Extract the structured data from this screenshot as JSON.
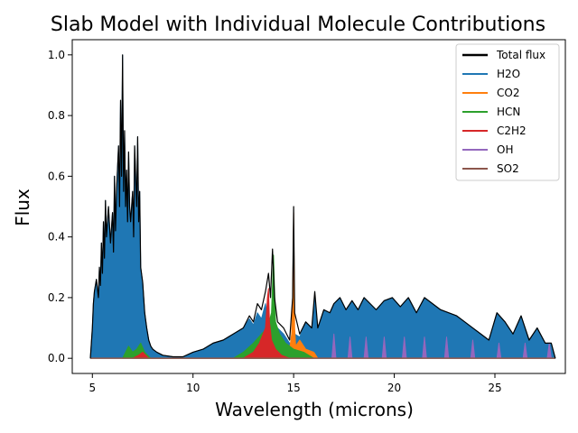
{
  "chart_data": {
    "type": "line",
    "title": "Slab Model with Individual Molecule Contributions",
    "xlabel": "Wavelength (microns)",
    "ylabel": "Flux",
    "xlim": [
      4.0,
      28.5
    ],
    "ylim": [
      -0.05,
      1.05
    ],
    "xticks": [
      5,
      10,
      15,
      20,
      25
    ],
    "xtick_labels": [
      "5",
      "10",
      "15",
      "20",
      "25"
    ],
    "yticks": [
      0.0,
      0.2,
      0.4,
      0.6,
      0.8,
      1.0
    ],
    "ytick_labels": [
      "0.0",
      "0.2",
      "0.4",
      "0.6",
      "0.8",
      "1.0"
    ],
    "grid": false,
    "legend_position": "top-right",
    "series": [
      {
        "name": "Total flux",
        "color": "#000000",
        "style": "line",
        "x": [
          4.9,
          5.0,
          5.05,
          5.1,
          5.2,
          5.3,
          5.35,
          5.4,
          5.45,
          5.5,
          5.55,
          5.6,
          5.65,
          5.7,
          5.8,
          5.85,
          5.9,
          6.0,
          6.05,
          6.1,
          6.15,
          6.2,
          6.3,
          6.35,
          6.4,
          6.45,
          6.5,
          6.55,
          6.6,
          6.65,
          6.7,
          6.75,
          6.8,
          6.85,
          6.9,
          7.0,
          7.05,
          7.1,
          7.2,
          7.25,
          7.3,
          7.35,
          7.4,
          7.5,
          7.55,
          7.6,
          7.7,
          7.8,
          7.9,
          8.0,
          8.2,
          8.5,
          9.0,
          9.5,
          10.0,
          10.5,
          11.0,
          11.5,
          12.0,
          12.5,
          12.8,
          13.0,
          13.2,
          13.4,
          13.6,
          13.75,
          13.85,
          13.95,
          14.05,
          14.2,
          14.5,
          14.8,
          14.95,
          15.0,
          15.05,
          15.3,
          15.6,
          15.9,
          16.05,
          16.2,
          16.5,
          16.8,
          17.0,
          17.3,
          17.6,
          17.9,
          18.2,
          18.5,
          18.8,
          19.1,
          19.5,
          19.9,
          20.3,
          20.7,
          21.1,
          21.5,
          21.9,
          22.3,
          22.7,
          23.1,
          23.5,
          23.9,
          24.3,
          24.7,
          25.1,
          25.5,
          25.9,
          26.3,
          26.7,
          27.1,
          27.5,
          27.8,
          28.0
        ],
        "y": [
          0.0,
          0.1,
          0.18,
          0.22,
          0.26,
          0.2,
          0.3,
          0.24,
          0.38,
          0.28,
          0.45,
          0.33,
          0.52,
          0.4,
          0.5,
          0.44,
          0.38,
          0.48,
          0.35,
          0.6,
          0.42,
          0.55,
          0.7,
          0.5,
          0.85,
          0.6,
          1.0,
          0.55,
          0.75,
          0.5,
          0.62,
          0.45,
          0.68,
          0.5,
          0.45,
          0.55,
          0.4,
          0.7,
          0.5,
          0.73,
          0.45,
          0.55,
          0.3,
          0.25,
          0.2,
          0.15,
          0.1,
          0.06,
          0.04,
          0.03,
          0.02,
          0.01,
          0.005,
          0.005,
          0.02,
          0.03,
          0.05,
          0.06,
          0.08,
          0.1,
          0.14,
          0.12,
          0.18,
          0.16,
          0.22,
          0.28,
          0.2,
          0.36,
          0.2,
          0.12,
          0.1,
          0.06,
          0.2,
          0.5,
          0.15,
          0.08,
          0.12,
          0.1,
          0.22,
          0.1,
          0.16,
          0.15,
          0.18,
          0.2,
          0.16,
          0.19,
          0.16,
          0.2,
          0.18,
          0.16,
          0.19,
          0.2,
          0.17,
          0.2,
          0.15,
          0.2,
          0.18,
          0.16,
          0.15,
          0.14,
          0.12,
          0.1,
          0.08,
          0.06,
          0.15,
          0.12,
          0.08,
          0.14,
          0.06,
          0.1,
          0.05,
          0.05,
          0.0
        ]
      },
      {
        "name": "H2O",
        "color": "#1f77b4",
        "style": "fill",
        "x": [
          4.9,
          5.0,
          5.05,
          5.1,
          5.2,
          5.3,
          5.35,
          5.4,
          5.45,
          5.5,
          5.55,
          5.6,
          5.65,
          5.7,
          5.8,
          5.85,
          5.9,
          6.0,
          6.05,
          6.1,
          6.15,
          6.2,
          6.3,
          6.35,
          6.4,
          6.45,
          6.5,
          6.55,
          6.6,
          6.65,
          6.7,
          6.75,
          6.8,
          6.85,
          6.9,
          7.0,
          7.05,
          7.1,
          7.2,
          7.25,
          7.3,
          7.35,
          7.4,
          7.5,
          7.55,
          7.6,
          7.7,
          7.8,
          7.9,
          8.0,
          8.2,
          8.5,
          9.0,
          9.5,
          10.0,
          10.5,
          11.0,
          11.5,
          12.0,
          12.5,
          12.8,
          13.0,
          13.2,
          13.4,
          13.6,
          13.75,
          13.85,
          13.95,
          14.05,
          14.2,
          14.5,
          14.8,
          14.95,
          15.0,
          15.05,
          15.3,
          15.6,
          15.9,
          16.05,
          16.2,
          16.5,
          16.8,
          17.0,
          17.3,
          17.6,
          17.9,
          18.2,
          18.5,
          18.8,
          19.1,
          19.5,
          19.9,
          20.3,
          20.7,
          21.1,
          21.5,
          21.9,
          22.3,
          22.7,
          23.1,
          23.5,
          23.9,
          24.3,
          24.7,
          25.1,
          25.5,
          25.9,
          26.3,
          26.7,
          27.1,
          27.5,
          27.8,
          28.0
        ],
        "y": [
          0.0,
          0.1,
          0.18,
          0.22,
          0.26,
          0.2,
          0.3,
          0.24,
          0.38,
          0.28,
          0.45,
          0.33,
          0.52,
          0.4,
          0.5,
          0.44,
          0.38,
          0.48,
          0.35,
          0.6,
          0.42,
          0.55,
          0.7,
          0.5,
          0.85,
          0.6,
          1.0,
          0.55,
          0.75,
          0.5,
          0.62,
          0.45,
          0.68,
          0.5,
          0.45,
          0.55,
          0.4,
          0.7,
          0.5,
          0.73,
          0.45,
          0.55,
          0.3,
          0.25,
          0.2,
          0.15,
          0.1,
          0.06,
          0.04,
          0.03,
          0.02,
          0.01,
          0.005,
          0.005,
          0.02,
          0.03,
          0.05,
          0.06,
          0.08,
          0.1,
          0.13,
          0.11,
          0.15,
          0.13,
          0.18,
          0.1,
          0.12,
          0.15,
          0.12,
          0.1,
          0.08,
          0.05,
          0.05,
          0.03,
          0.08,
          0.07,
          0.12,
          0.1,
          0.2,
          0.1,
          0.16,
          0.15,
          0.18,
          0.2,
          0.16,
          0.19,
          0.16,
          0.2,
          0.18,
          0.16,
          0.19,
          0.2,
          0.17,
          0.2,
          0.15,
          0.2,
          0.18,
          0.16,
          0.15,
          0.14,
          0.12,
          0.1,
          0.08,
          0.06,
          0.15,
          0.12,
          0.08,
          0.14,
          0.06,
          0.1,
          0.05,
          0.05,
          0.0
        ]
      },
      {
        "name": "CO2",
        "color": "#ff7f0e",
        "style": "fill",
        "x": [
          14.6,
          14.8,
          14.9,
          14.95,
          15.0,
          15.05,
          15.1,
          15.3,
          15.6,
          16.0,
          16.2
        ],
        "y": [
          0.0,
          0.03,
          0.08,
          0.2,
          0.48,
          0.1,
          0.04,
          0.06,
          0.03,
          0.02,
          0.0
        ]
      },
      {
        "name": "HCN",
        "color": "#2ca02c",
        "style": "fill",
        "x": [
          6.5,
          6.8,
          7.0,
          7.2,
          7.4,
          7.6,
          7.9,
          12.0,
          12.5,
          13.0,
          13.4,
          13.7,
          13.9,
          14.0,
          14.1,
          14.3,
          14.6,
          15.0,
          15.5,
          16.0
        ],
        "y": [
          0.0,
          0.04,
          0.02,
          0.03,
          0.05,
          0.02,
          0.0,
          0.0,
          0.02,
          0.05,
          0.08,
          0.1,
          0.15,
          0.34,
          0.12,
          0.08,
          0.05,
          0.03,
          0.02,
          0.0
        ]
      },
      {
        "name": "C2H2",
        "color": "#d62728",
        "style": "fill",
        "x": [
          7.0,
          7.3,
          7.5,
          7.8,
          12.5,
          13.0,
          13.3,
          13.6,
          13.7,
          13.75,
          13.8,
          13.9,
          14.1,
          14.4,
          14.8
        ],
        "y": [
          0.0,
          0.01,
          0.02,
          0.0,
          0.0,
          0.02,
          0.05,
          0.1,
          0.2,
          0.23,
          0.12,
          0.06,
          0.03,
          0.01,
          0.0
        ]
      },
      {
        "name": "OH",
        "color": "#9467bd",
        "style": "fill",
        "x": [
          16.9,
          17.0,
          17.1,
          17.7,
          17.8,
          17.9,
          18.5,
          18.6,
          18.7,
          19.4,
          19.5,
          19.6,
          20.4,
          20.5,
          20.6,
          21.4,
          21.5,
          21.6,
          22.5,
          22.6,
          22.7,
          23.8,
          23.9,
          24.0,
          25.1,
          25.2,
          25.3,
          26.4,
          26.5,
          26.6,
          27.6,
          27.7,
          27.8
        ],
        "y": [
          0.0,
          0.08,
          0.0,
          0.0,
          0.07,
          0.0,
          0.0,
          0.07,
          0.0,
          0.0,
          0.07,
          0.0,
          0.0,
          0.07,
          0.0,
          0.0,
          0.07,
          0.0,
          0.0,
          0.07,
          0.0,
          0.0,
          0.06,
          0.0,
          0.0,
          0.05,
          0.0,
          0.0,
          0.05,
          0.0,
          0.0,
          0.05,
          0.0
        ]
      },
      {
        "name": "SO2",
        "color": "#8c564b",
        "style": "line",
        "x": [
          4.9,
          28.0
        ],
        "y": [
          0.0,
          0.0
        ]
      }
    ]
  }
}
